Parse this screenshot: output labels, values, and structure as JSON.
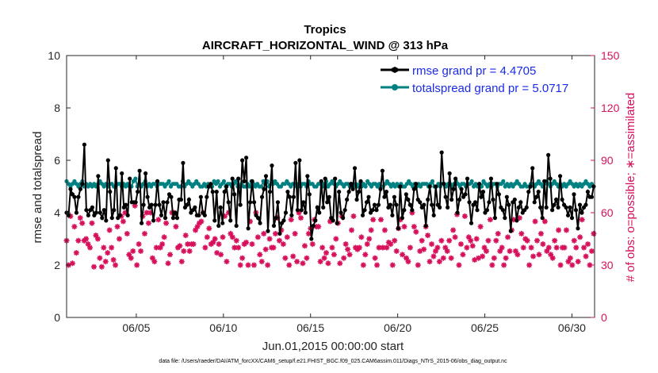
{
  "chart_data": {
    "type": "line",
    "title": "Tropics",
    "subtitle": "AIRCRAFT_HORIZONTAL_WIND @ 313 hPa",
    "xlabel": "Jun.01,2015 00:00:00 start",
    "ylabel": "rmse and totalspread",
    "y2label": "# of obs: o=possible; ∗=assimilated",
    "footer": "data file: /Users/raeder/DAI/ATM_forcXX/CAM6_setup/f.e21.FHIST_BGC.f09_025.CAM6assim.011/Diags_NTrS_2015-06/obs_diag_output.nc",
    "xlim": [
      1,
      31.3
    ],
    "ylim": [
      0,
      10
    ],
    "y2lim": [
      0,
      150
    ],
    "xticks": [
      5,
      10,
      15,
      20,
      25,
      30
    ],
    "xtick_labels": [
      "06/05",
      "06/10",
      "06/15",
      "06/20",
      "06/25",
      "06/30"
    ],
    "yticks": [
      0,
      2,
      4,
      6,
      8,
      10
    ],
    "y2ticks": [
      0,
      30,
      60,
      90,
      120,
      150
    ],
    "legend_position": "top-right",
    "colors": {
      "rmse": "#000000",
      "spread": "#008080",
      "obs": "#d6105a",
      "legend_text": "#1b2be6",
      "right_axis": "#d6105a"
    },
    "series": [
      {
        "name": "rmse grand pr = 4.4705",
        "values": [
          4.0,
          3.9,
          4.9,
          4.7,
          4.6,
          4.0,
          4.6,
          4.9,
          5.1,
          6.6,
          4.1,
          3.9,
          4.1,
          4.2,
          3.9,
          4.0,
          5.4,
          4.0,
          3.8,
          4.1,
          3.7,
          6.0,
          4.8,
          3.8,
          4.1,
          5.7,
          3.8,
          3.9,
          5.5,
          4.2,
          4.3,
          3.9,
          5.3,
          4.4,
          4.4,
          4.4,
          4.8,
          5.6,
          3.6,
          4.3,
          5.5,
          4.6,
          4.2,
          4.3,
          3.7,
          4.3,
          5.2,
          4.3,
          3.9,
          4.4,
          3.8,
          4.4,
          4.7,
          4.6,
          3.8,
          4.0,
          3.8,
          4.5,
          4.5,
          5.9,
          4.2,
          4.3,
          4.5,
          4.0,
          4.1,
          4.2,
          3.9,
          3.9,
          4.6,
          4.0,
          3.9,
          4.6,
          5.0,
          5.1,
          4.8,
          3.7,
          4.8,
          3.5,
          4.2,
          3.6,
          4.8,
          5.0,
          4.4,
          3.7,
          5.3,
          4.7,
          3.5,
          5.3,
          4.3,
          6.0,
          5.2,
          6.1,
          3.4,
          4.4,
          5.2,
          4.4,
          3.9,
          3.8,
          3.6,
          4.6,
          4.9,
          5.4,
          3.3,
          4.8,
          5.8,
          3.5,
          3.8,
          4.4,
          3.2,
          3.6,
          3.7,
          4.0,
          4.8,
          4.6,
          3.9,
          4.6,
          5.9,
          4.1,
          6.0,
          4.1,
          4.4,
          4.0,
          5.4,
          4.7,
          3.0,
          3.5,
          3.7,
          4.2,
          4.0,
          5.2,
          4.2,
          5.3,
          4.4,
          4.6,
          3.8,
          3.7,
          5.3,
          3.6,
          4.8,
          4.0,
          3.8,
          4.1,
          4.5,
          4.8,
          5.1,
          4.9,
          5.7,
          4.5,
          4.8,
          5.2,
          3.9,
          4.1,
          4.4,
          4.6,
          4.0,
          4.1,
          4.3,
          4.1,
          4.3,
          4.9,
          5.6,
          4.6,
          4.8,
          4.2,
          4.3,
          3.9,
          4.6,
          4.3,
          3.4,
          5.0,
          3.8,
          4.1,
          4.7,
          4.5,
          4.3,
          4.1,
          4.9,
          5.1,
          4.5,
          4.4,
          4.2,
          4.3,
          3.5,
          4.5,
          5.0,
          4.3,
          3.9,
          5.0,
          4.3,
          4.2,
          6.3,
          5.1,
          4.6,
          4.2,
          5.5,
          4.5,
          4.9,
          5.3,
          4.0,
          4.5,
          4.9,
          4.6,
          4.7,
          5.3,
          4.4,
          3.6,
          4.3,
          4.4,
          4.1,
          5.1,
          4.6,
          4.8,
          4.0,
          4.1,
          4.4,
          5.3,
          4.5,
          3.8,
          5.1,
          4.7,
          4.2,
          4.1,
          3.8,
          4.6,
          4.3,
          3.3,
          4.4,
          4.5,
          3.7,
          4.2,
          4.4,
          4.0,
          4.1,
          4.2,
          4.8,
          5.0,
          5.7,
          4.4,
          4.6,
          4.8,
          4.2,
          3.8,
          5.2,
          4.2,
          6.2,
          5.3,
          4.1,
          4.3,
          4.5,
          4.2,
          5.4,
          4.5,
          4.3,
          4.2,
          3.9,
          4.2,
          3.8,
          4.7,
          4.1,
          3.4,
          4.3,
          4.0,
          4.2,
          4.3,
          4.8,
          4.6,
          4.6,
          5.0
        ],
        "color": "#000000"
      },
      {
        "name": "totalspread grand pr = 5.0717",
        "values": [
          5.2,
          5.1,
          5.0,
          5.1,
          5.2,
          5.1,
          5.0,
          5.1,
          5.2,
          5.0,
          5.1,
          5.0,
          5.1,
          5.0,
          5.1,
          5.0,
          5.1,
          5.2,
          5.1,
          5.0,
          5.1,
          5.0,
          5.1,
          5.1,
          5.0,
          5.0,
          5.1,
          5.1,
          5.0,
          5.1,
          5.0,
          5.1,
          5.0,
          5.0,
          5.2,
          5.3,
          5.0,
          5.1,
          5.0,
          5.1,
          5.2,
          5.0,
          5.1,
          5.0,
          5.1,
          5.1,
          5.0,
          5.1,
          5.1,
          5.1,
          5.0,
          5.1,
          5.2,
          5.0,
          5.1,
          5.1,
          5.1,
          5.0,
          5.0,
          5.2,
          5.0,
          5.1,
          5.2,
          5.1,
          5.0,
          5.1,
          5.2,
          5.1,
          5.0,
          5.0,
          5.1,
          5.0,
          5.1,
          5.0,
          5.0,
          5.2,
          5.1,
          5.2,
          5.0,
          5.1,
          5.2,
          5.0,
          5.1,
          5.1,
          5.0,
          5.1,
          5.2,
          5.0,
          5.0,
          5.1,
          5.0,
          5.0,
          5.1,
          5.0,
          5.2,
          5.1,
          5.0,
          5.1,
          5.0,
          5.0,
          5.2,
          5.1,
          5.2,
          5.0,
          5.1,
          5.1,
          5.2,
          5.1,
          5.0,
          5.0,
          5.1,
          5.1,
          5.2,
          5.1,
          5.0,
          5.1,
          5.1,
          5.0,
          5.1,
          5.0,
          5.1,
          5.1,
          5.0,
          5.2,
          5.1,
          5.1,
          5.0,
          5.0,
          5.1,
          5.1,
          5.0,
          5.1,
          5.2,
          5.0,
          5.1,
          5.2,
          5.1,
          5.0,
          5.1,
          5.2,
          5.1,
          5.0,
          5.1,
          5.1,
          5.0,
          5.1,
          5.0,
          5.1,
          5.0,
          5.1,
          5.0,
          5.1,
          5.0,
          5.2,
          5.1,
          5.0,
          5.1,
          5.1,
          5.0,
          5.1,
          5.0,
          5.0,
          5.1,
          5.2,
          5.1,
          5.0,
          5.1,
          5.0,
          5.1,
          5.0,
          5.1,
          5.0,
          5.0,
          5.1,
          5.2,
          5.1,
          5.0,
          5.1,
          5.0,
          5.1,
          5.0,
          5.1,
          5.1,
          5.1,
          5.0,
          5.1,
          5.2,
          5.0,
          5.0,
          5.1,
          5.0,
          5.1,
          5.1,
          5.0,
          5.1,
          5.1,
          5.0,
          5.1,
          5.2,
          5.1,
          5.0,
          5.1,
          5.1,
          5.0,
          5.1,
          5.1,
          5.2,
          5.0,
          5.1,
          5.0,
          5.1,
          5.0,
          5.2,
          5.1,
          5.0,
          5.1,
          5.0,
          5.1,
          5.1,
          5.0,
          5.1,
          5.1,
          5.2,
          5.0,
          5.1,
          5.0,
          5.1,
          5.0,
          5.1,
          5.2,
          5.1,
          5.0,
          5.0,
          5.1,
          5.0,
          5.0,
          5.1,
          5.1,
          5.0,
          5.1,
          5.2,
          5.1,
          5.0,
          5.1,
          5.2,
          5.1,
          5.0,
          5.1,
          5.2,
          5.1,
          5.0,
          5.1,
          5.0,
          5.1,
          5.0,
          5.1,
          5.2,
          5.1,
          5.0,
          5.1,
          5.0,
          5.1,
          5.0,
          5.1,
          5.2,
          5.1,
          5.0,
          5.1,
          5.0
        ],
        "color": "#008080"
      },
      {
        "name": "obs",
        "values": [
          44,
          30,
          58,
          31,
          52,
          37,
          44,
          57,
          54,
          44,
          45,
          42,
          40,
          54,
          29,
          47,
          45,
          34,
          29,
          40,
          32,
          37,
          50,
          40,
          33,
          30,
          52,
          45,
          58,
          55,
          60,
          48,
          36,
          34,
          38,
          64,
          30,
          42,
          38,
          58,
          48,
          60,
          54,
          60,
          34,
          32,
          40,
          56,
          40,
          42,
          46,
          54,
          31,
          36,
          60,
          60,
          52,
          40,
          41,
          32,
          38,
          47,
          42,
          38,
          42,
          42,
          50,
          52,
          54,
          55,
          60,
          40,
          46,
          51,
          42,
          43,
          45,
          37,
          42,
          36,
          46,
          58,
          32,
          60,
          48,
          46,
          40,
          44,
          40,
          30,
          34,
          42,
          43,
          30,
          55,
          42,
          30,
          60,
          46,
          36,
          32,
          48,
          39,
          30,
          45,
          40,
          40,
          48,
          57,
          44,
          50,
          42,
          34,
          46,
          30,
          56,
          35,
          48,
          32,
          60,
          57,
          31,
          41,
          34,
          48,
          51,
          42,
          56,
          52,
          52,
          32,
          40,
          34,
          37,
          31,
          55,
          40,
          36,
          45,
          54,
          31,
          58,
          34,
          42,
          39,
          36,
          50,
          58,
          40,
          39,
          40,
          46,
          30,
          36,
          42,
          45,
          50,
          56,
          34,
          30,
          40,
          56,
          40,
          50,
          40,
          43,
          42,
          30,
          44,
          38,
          51,
          56,
          36,
          52,
          34,
          32,
          40,
          60,
          52,
          49,
          30,
          38,
          44,
          39,
          52,
          47,
          32,
          42,
          35,
          38,
          40,
          32,
          44,
          34,
          40,
          38,
          44,
          34,
          50,
          46,
          59,
          30,
          42,
          36,
          58,
          40,
          46,
          44,
          41,
          33,
          45,
          34,
          52,
          35,
          40,
          38,
          44,
          56,
          30,
          34,
          44,
          48,
          38,
          40,
          30,
          34,
          46,
          38,
          50,
          56,
          38,
          36,
          57,
          48,
          40,
          45,
          44,
          30,
          40,
          35,
          55,
          44,
          36,
          48,
          42,
          55,
          38,
          40,
          36,
          34,
          44,
          40,
          50,
          30,
          40,
          40,
          50,
          32,
          34,
          30,
          44,
          40,
          32,
          46,
          56,
          40,
          35,
          42,
          30,
          38,
          48
        ],
        "color": "#d6105a"
      }
    ]
  }
}
